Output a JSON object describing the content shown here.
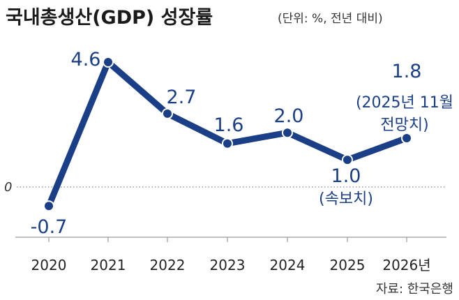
{
  "chart_data": {
    "type": "line",
    "title": "국내총생산(GDP) 성장률",
    "subtitle": "(단위: %, 전년 대비)",
    "categories": [
      "2020",
      "2021",
      "2022",
      "2023",
      "2024",
      "2025",
      "2026년"
    ],
    "series": [
      {
        "values": [
          -0.7,
          4.6,
          2.7,
          1.6,
          2.0,
          1.0,
          1.8
        ]
      }
    ],
    "data_labels": [
      "-0.7",
      "4.6",
      "2.7",
      "1.6",
      "2.0",
      "1.0",
      "1.8"
    ],
    "annotations": [
      {
        "category": "2025",
        "lines": [
          "(속보치)"
        ]
      },
      {
        "category": "2026년",
        "lines": [
          "(2025년 11월",
          "전망치)"
        ]
      }
    ],
    "zero_line_label": "0",
    "source": "자료: 한국은행",
    "line_color": "#1b3f86",
    "ylim": [
      -1.5,
      6.0
    ],
    "grid": false
  }
}
